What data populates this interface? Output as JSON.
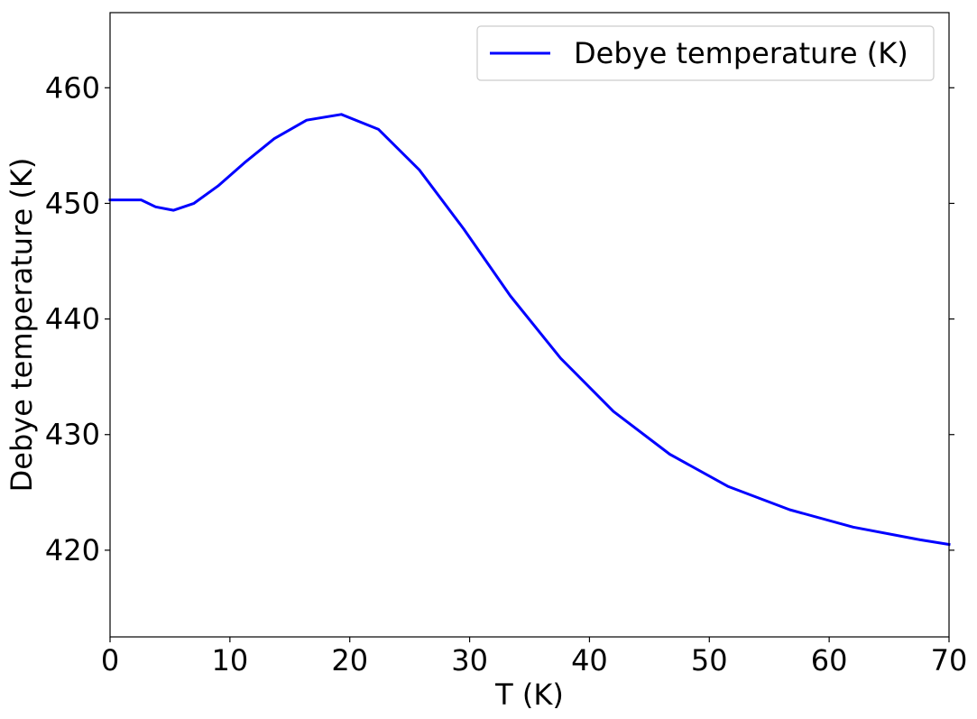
{
  "chart_data": {
    "type": "line",
    "xlabel": "T (K)",
    "ylabel": "Debye temperature (K)",
    "xlim": [
      0,
      70
    ],
    "ylim": [
      412.5,
      466.5
    ],
    "xticks": [
      0,
      10,
      20,
      30,
      40,
      50,
      60,
      70
    ],
    "yticks": [
      420,
      430,
      440,
      450,
      460
    ],
    "grid": false,
    "legend_position": "upper-right",
    "series": [
      {
        "name": "Debye temperature (K)",
        "color": "#0000ff",
        "x": [
          0,
          2.6,
          3.8,
          5.3,
          7.0,
          9.0,
          11.2,
          13.7,
          16.4,
          19.3,
          22.4,
          25.8,
          29.5,
          33.4,
          37.6,
          42.0,
          46.7,
          51.6,
          56.7,
          62.0,
          67.6,
          70.0
        ],
        "y": [
          450.3,
          450.3,
          449.7,
          449.4,
          450.0,
          451.5,
          453.5,
          455.6,
          457.2,
          457.7,
          456.4,
          452.9,
          447.8,
          442.0,
          436.6,
          432.0,
          428.3,
          425.5,
          423.5,
          422.0,
          420.9,
          420.5
        ]
      }
    ]
  }
}
